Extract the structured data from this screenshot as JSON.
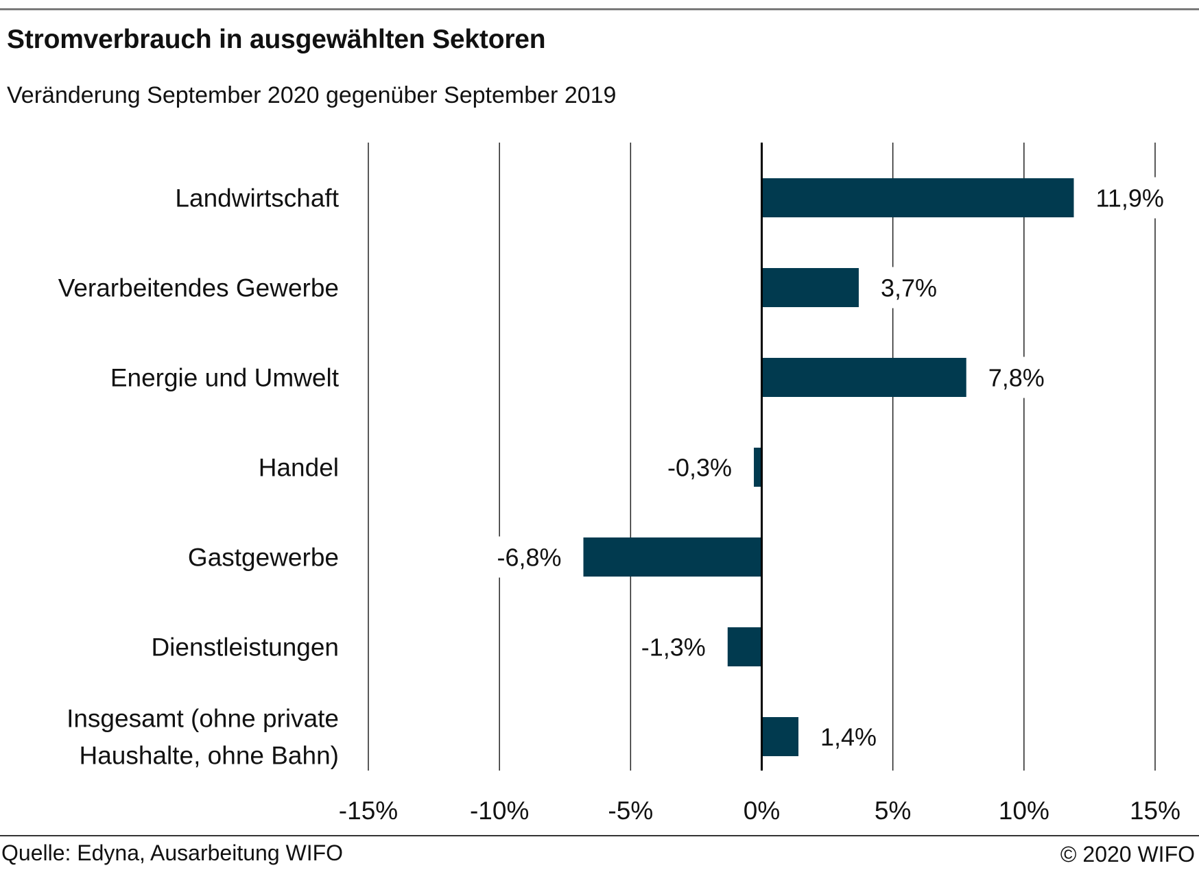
{
  "title": "Stromverbrauch in ausgewählten Sektoren",
  "subtitle": "Veränderung September 2020 gegenüber September 2019",
  "source": "Quelle: Edyna, Ausarbeitung WIFO",
  "copyright": "© 2020 WIFO",
  "colors": {
    "bar": "#013a4f",
    "grid": "#222222",
    "axis": "#000000"
  },
  "chart_data": {
    "type": "bar",
    "orientation": "horizontal",
    "title": "Stromverbrauch in ausgewählten Sektoren",
    "subtitle": "Veränderung September 2020 gegenüber September 2019",
    "categories": [
      [
        "Landwirtschaft"
      ],
      [
        "Verarbeitendes Gewerbe"
      ],
      [
        "Energie und Umwelt"
      ],
      [
        "Handel"
      ],
      [
        "Gastgewerbe"
      ],
      [
        "Dienstleistungen"
      ],
      [
        "Insgesamt (ohne private",
        "Haushalte, ohne Bahn)"
      ]
    ],
    "values": [
      11.9,
      3.7,
      7.8,
      -0.3,
      -6.8,
      -1.3,
      1.4
    ],
    "data_labels": [
      "11,9%",
      "3,7%",
      "7,8%",
      "-0,3%",
      "-6,8%",
      "-1,3%",
      "1,4%"
    ],
    "xlim": [
      -15,
      15
    ],
    "xticks": [
      -15,
      -10,
      -5,
      0,
      5,
      10,
      15
    ],
    "xtick_labels": [
      "-15%",
      "-10%",
      "-5%",
      "0%",
      "5%",
      "10%",
      "15%"
    ],
    "grid": "vertical",
    "legend": "none"
  }
}
